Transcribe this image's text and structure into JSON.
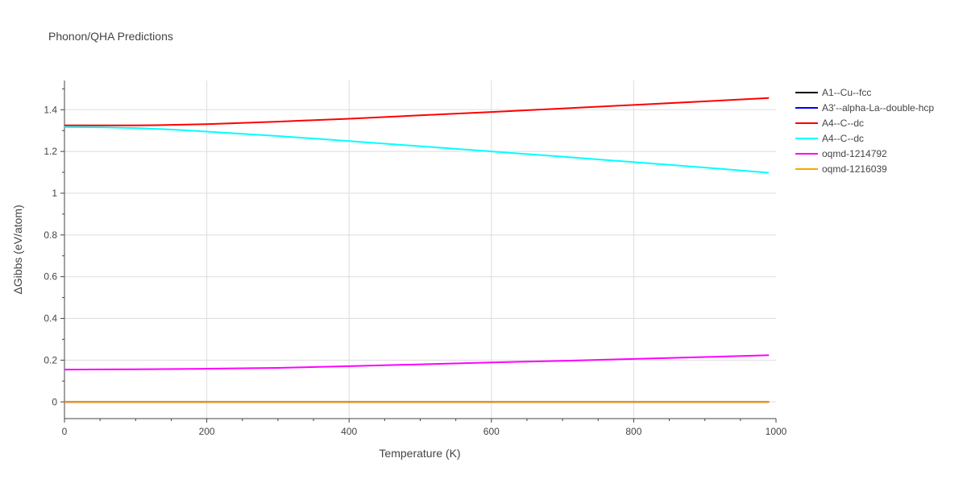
{
  "chart_data": {
    "type": "line",
    "title": "Phonon/QHA Predictions",
    "xlabel": "Temperature (K)",
    "ylabel": "ΔGibbs (eV/atom)",
    "xlim": [
      0,
      1000
    ],
    "ylim": [
      -0.08,
      1.54
    ],
    "xticks": [
      0,
      200,
      400,
      600,
      800,
      1000
    ],
    "xtick_labels": [
      "0",
      "200",
      "400",
      "600",
      "800",
      "1000"
    ],
    "yticks": [
      0,
      0.2,
      0.4,
      0.6,
      0.8,
      1.0,
      1.2,
      1.4
    ],
    "ytick_labels": [
      "0",
      "0.2",
      "0.4",
      "0.6",
      "0.8",
      "1",
      "1.2",
      "1.4"
    ],
    "grid": true,
    "legend_position": "top-right outside",
    "series": [
      {
        "name": "A1--Cu--fcc",
        "color": "#000000",
        "x": [
          0,
          990
        ],
        "y": [
          0,
          0
        ]
      },
      {
        "name": "A3'--alpha-La--double-hcp",
        "color": "#0000ff",
        "x": [
          0,
          990
        ],
        "y": [
          0,
          0
        ]
      },
      {
        "name": "A4--C--dc",
        "color": "#ff0000",
        "x": [
          0,
          50,
          100,
          130,
          200,
          300,
          400,
          500,
          600,
          700,
          800,
          900,
          990
        ],
        "y": [
          1.325,
          1.325,
          1.325,
          1.326,
          1.331,
          1.343,
          1.357,
          1.373,
          1.389,
          1.406,
          1.423,
          1.44,
          1.456
        ]
      },
      {
        "name": "A4--C--dc",
        "color": "#00ffff",
        "x": [
          0,
          50,
          100,
          150,
          200,
          300,
          400,
          500,
          600,
          700,
          800,
          900,
          990
        ],
        "y": [
          1.317,
          1.316,
          1.312,
          1.305,
          1.295,
          1.274,
          1.25,
          1.225,
          1.2,
          1.175,
          1.149,
          1.123,
          1.098
        ]
      },
      {
        "name": "oqmd-1214792",
        "color": "#ff00ff",
        "x": [
          0,
          100,
          180,
          200,
          300,
          400,
          500,
          600,
          700,
          800,
          900,
          990
        ],
        "y": [
          0.155,
          0.156,
          0.158,
          0.159,
          0.163,
          0.171,
          0.18,
          0.189,
          0.197,
          0.206,
          0.215,
          0.224
        ]
      },
      {
        "name": "oqmd-1216039",
        "color": "#ffa500",
        "x": [
          0,
          990
        ],
        "y": [
          0,
          0
        ]
      }
    ]
  }
}
